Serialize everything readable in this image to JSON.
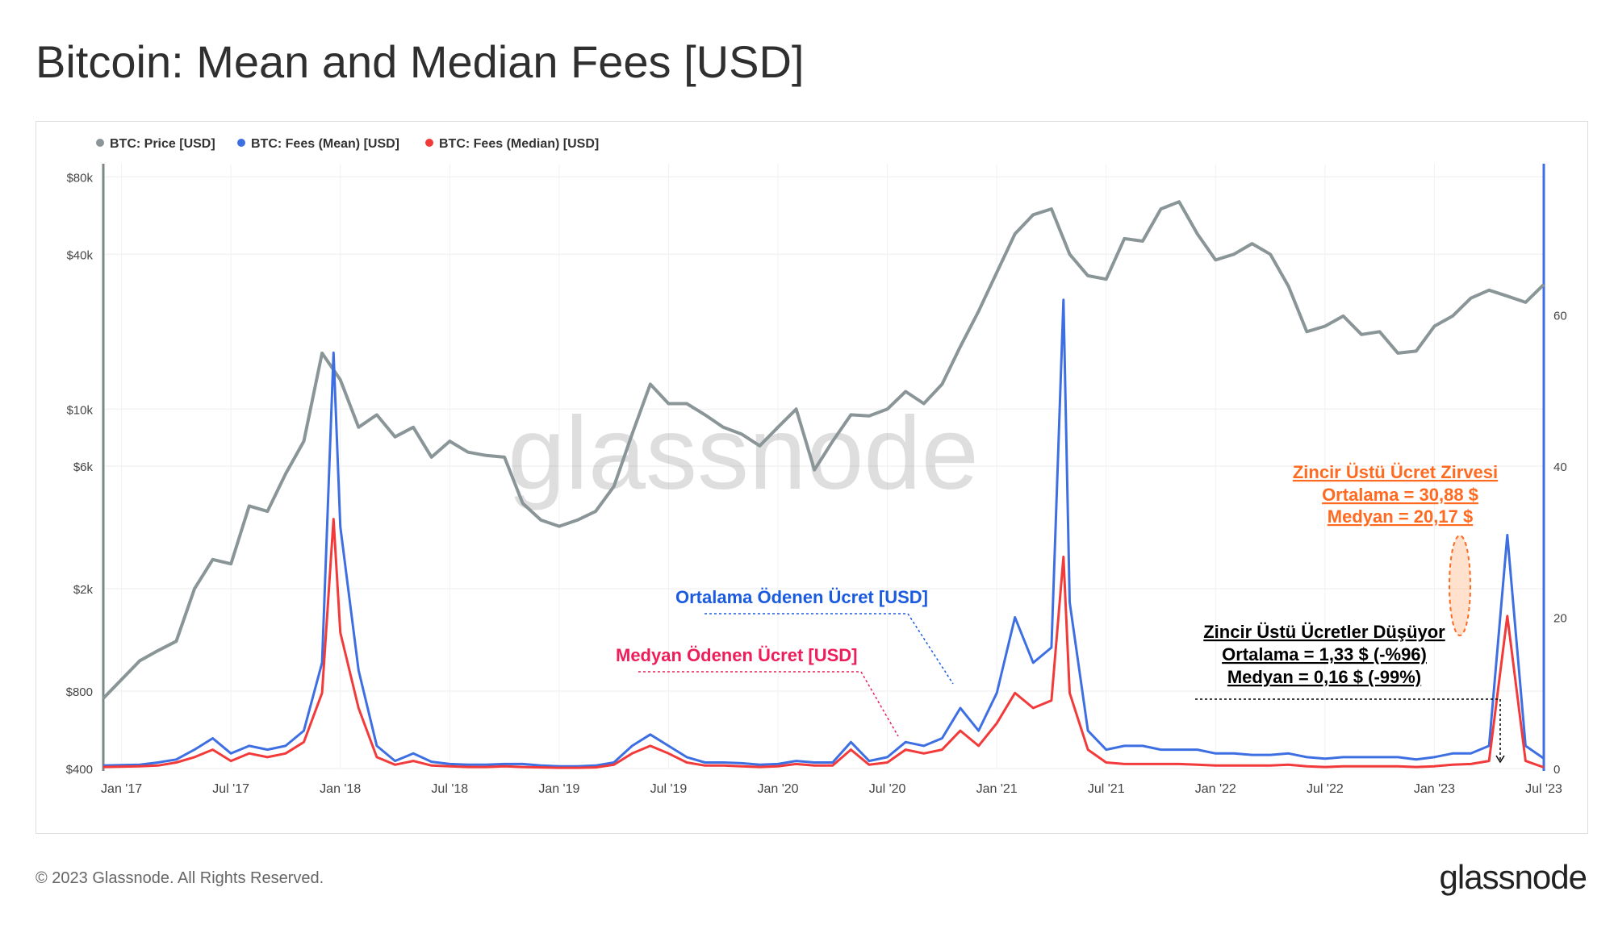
{
  "page": {
    "title": "Bitcoin: Mean and Median Fees [USD]",
    "copyright": "© 2023 Glassnode. All Rights Reserved.",
    "brand": "glassnode",
    "watermark": "glassnode"
  },
  "colors": {
    "price": "#8a9597",
    "mean": "#3d6fe3",
    "median": "#f23a3a",
    "blueText": "#1a5be0",
    "pinkText": "#ee1e5a",
    "orangeText": "#ff6a21"
  },
  "chart_data": {
    "type": "line",
    "x_range": [
      "2016-12",
      "2023-07"
    ],
    "x_ticks": [
      "Jan '17",
      "Jul '17",
      "Jan '18",
      "Jul '18",
      "Jan '19",
      "Jul '19",
      "Jan '20",
      "Jul '20",
      "Jan '21",
      "Jul '21",
      "Jan '22",
      "Jul '22",
      "Jan '23",
      "Jul '23"
    ],
    "y_left": {
      "scale": "log",
      "range": [
        400,
        90000
      ],
      "ticks": [
        "$400",
        "$800",
        "$2k",
        "$6k",
        "$10k",
        "$40k",
        "$80k"
      ],
      "tick_values": [
        400,
        800,
        2000,
        6000,
        10000,
        40000,
        80000
      ]
    },
    "y_right": {
      "scale": "linear",
      "range": [
        0,
        80
      ],
      "ticks": [
        "0",
        "20",
        "40",
        "60"
      ],
      "tick_values": [
        0,
        20,
        40,
        60
      ]
    },
    "legend": {
      "placement": "top-left"
    },
    "series": [
      {
        "name": "BTC: Price [USD]",
        "axis": "left",
        "color": "#8a9597",
        "points": [
          [
            "2016-12",
            750
          ],
          [
            "2017-02",
            1050
          ],
          [
            "2017-03",
            1150
          ],
          [
            "2017-04",
            1250
          ],
          [
            "2017-05",
            2000
          ],
          [
            "2017-06",
            2600
          ],
          [
            "2017-07",
            2500
          ],
          [
            "2017-08",
            4200
          ],
          [
            "2017-09",
            4000
          ],
          [
            "2017-10",
            5600
          ],
          [
            "2017-11",
            7500
          ],
          [
            "2017-12",
            16500
          ],
          [
            "2018-01",
            13000
          ],
          [
            "2018-02",
            8500
          ],
          [
            "2018-03",
            9500
          ],
          [
            "2018-04",
            7800
          ],
          [
            "2018-05",
            8500
          ],
          [
            "2018-06",
            6500
          ],
          [
            "2018-07",
            7500
          ],
          [
            "2018-08",
            6800
          ],
          [
            "2018-09",
            6600
          ],
          [
            "2018-10",
            6500
          ],
          [
            "2018-11",
            4300
          ],
          [
            "2018-12",
            3700
          ],
          [
            "2019-01",
            3500
          ],
          [
            "2019-02",
            3700
          ],
          [
            "2019-03",
            4000
          ],
          [
            "2019-04",
            5000
          ],
          [
            "2019-05",
            8000
          ],
          [
            "2019-06",
            12500
          ],
          [
            "2019-07",
            10500
          ],
          [
            "2019-08",
            10500
          ],
          [
            "2019-09",
            9500
          ],
          [
            "2019-10",
            8500
          ],
          [
            "2019-11",
            8000
          ],
          [
            "2019-12",
            7200
          ],
          [
            "2020-01",
            8500
          ],
          [
            "2020-02",
            10000
          ],
          [
            "2020-03",
            5800
          ],
          [
            "2020-04",
            7500
          ],
          [
            "2020-05",
            9500
          ],
          [
            "2020-06",
            9400
          ],
          [
            "2020-07",
            10000
          ],
          [
            "2020-08",
            11700
          ],
          [
            "2020-09",
            10500
          ],
          [
            "2020-10",
            12500
          ],
          [
            "2020-11",
            17500
          ],
          [
            "2020-12",
            24000
          ],
          [
            "2021-01",
            34000
          ],
          [
            "2021-02",
            48000
          ],
          [
            "2021-03",
            57000
          ],
          [
            "2021-04",
            60000
          ],
          [
            "2021-05",
            40000
          ],
          [
            "2021-06",
            33000
          ],
          [
            "2021-07",
            32000
          ],
          [
            "2021-08",
            46000
          ],
          [
            "2021-09",
            45000
          ],
          [
            "2021-10",
            60000
          ],
          [
            "2021-11",
            64000
          ],
          [
            "2021-12",
            48000
          ],
          [
            "2022-01",
            38000
          ],
          [
            "2022-02",
            40000
          ],
          [
            "2022-03",
            44000
          ],
          [
            "2022-04",
            40000
          ],
          [
            "2022-05",
            30000
          ],
          [
            "2022-06",
            20000
          ],
          [
            "2022-07",
            21000
          ],
          [
            "2022-08",
            23000
          ],
          [
            "2022-09",
            19500
          ],
          [
            "2022-10",
            20000
          ],
          [
            "2022-11",
            16500
          ],
          [
            "2022-12",
            16800
          ],
          [
            "2023-01",
            21000
          ],
          [
            "2023-02",
            23000
          ],
          [
            "2023-03",
            27000
          ],
          [
            "2023-04",
            29000
          ],
          [
            "2023-05",
            27500
          ],
          [
            "2023-06",
            26000
          ],
          [
            "2023-07",
            30500
          ]
        ]
      },
      {
        "name": "BTC: Fees (Mean) [USD]",
        "axis": "right",
        "color": "#3d6fe3",
        "points": [
          [
            "2016-12",
            0.4
          ],
          [
            "2017-02",
            0.5
          ],
          [
            "2017-03",
            0.8
          ],
          [
            "2017-04",
            1.2
          ],
          [
            "2017-05",
            2.5
          ],
          [
            "2017-06",
            4.0
          ],
          [
            "2017-07",
            2.0
          ],
          [
            "2017-08",
            3.0
          ],
          [
            "2017-09",
            2.5
          ],
          [
            "2017-10",
            3.0
          ],
          [
            "2017-11",
            5.0
          ],
          [
            "2017-12",
            14.0
          ],
          [
            "2017-12-20",
            55.0
          ],
          [
            "2018-01",
            32.0
          ],
          [
            "2018-02",
            13.0
          ],
          [
            "2018-03",
            3.0
          ],
          [
            "2018-04",
            1.0
          ],
          [
            "2018-05",
            2.0
          ],
          [
            "2018-06",
            0.9
          ],
          [
            "2018-07",
            0.6
          ],
          [
            "2018-08",
            0.5
          ],
          [
            "2018-09",
            0.5
          ],
          [
            "2018-10",
            0.6
          ],
          [
            "2018-11",
            0.6
          ],
          [
            "2018-12",
            0.4
          ],
          [
            "2019-01",
            0.3
          ],
          [
            "2019-02",
            0.3
          ],
          [
            "2019-03",
            0.4
          ],
          [
            "2019-04",
            0.8
          ],
          [
            "2019-05",
            3.0
          ],
          [
            "2019-06",
            4.5
          ],
          [
            "2019-07",
            3.0
          ],
          [
            "2019-08",
            1.5
          ],
          [
            "2019-09",
            0.8
          ],
          [
            "2019-10",
            0.8
          ],
          [
            "2019-11",
            0.7
          ],
          [
            "2019-12",
            0.5
          ],
          [
            "2020-01",
            0.6
          ],
          [
            "2020-02",
            1.0
          ],
          [
            "2020-03",
            0.8
          ],
          [
            "2020-04",
            0.8
          ],
          [
            "2020-05",
            3.5
          ],
          [
            "2020-06",
            1.0
          ],
          [
            "2020-07",
            1.5
          ],
          [
            "2020-08",
            3.5
          ],
          [
            "2020-09",
            3.0
          ],
          [
            "2020-10",
            4.0
          ],
          [
            "2020-11",
            8.0
          ],
          [
            "2020-12",
            5.0
          ],
          [
            "2021-01",
            10.0
          ],
          [
            "2021-02",
            20.0
          ],
          [
            "2021-03",
            14.0
          ],
          [
            "2021-04",
            16.0
          ],
          [
            "2021-04-21",
            62.0
          ],
          [
            "2021-05",
            22.0
          ],
          [
            "2021-06",
            5.0
          ],
          [
            "2021-07",
            2.5
          ],
          [
            "2021-08",
            3.0
          ],
          [
            "2021-09",
            3.0
          ],
          [
            "2021-10",
            2.5
          ],
          [
            "2021-11",
            2.5
          ],
          [
            "2021-12",
            2.5
          ],
          [
            "2022-01",
            2.0
          ],
          [
            "2022-02",
            2.0
          ],
          [
            "2022-03",
            1.8
          ],
          [
            "2022-04",
            1.8
          ],
          [
            "2022-05",
            2.0
          ],
          [
            "2022-06",
            1.5
          ],
          [
            "2022-07",
            1.3
          ],
          [
            "2022-08",
            1.5
          ],
          [
            "2022-09",
            1.5
          ],
          [
            "2022-10",
            1.5
          ],
          [
            "2022-11",
            1.5
          ],
          [
            "2022-12",
            1.2
          ],
          [
            "2023-01",
            1.5
          ],
          [
            "2023-02",
            2.0
          ],
          [
            "2023-03",
            2.0
          ],
          [
            "2023-04",
            3.0
          ],
          [
            "2023-05",
            30.88
          ],
          [
            "2023-06",
            3.0
          ],
          [
            "2023-07",
            1.33
          ]
        ]
      },
      {
        "name": "BTC: Fees (Median) [USD]",
        "axis": "right",
        "color": "#f23a3a",
        "points": [
          [
            "2016-12",
            0.2
          ],
          [
            "2017-02",
            0.3
          ],
          [
            "2017-03",
            0.4
          ],
          [
            "2017-04",
            0.8
          ],
          [
            "2017-05",
            1.5
          ],
          [
            "2017-06",
            2.5
          ],
          [
            "2017-07",
            1.0
          ],
          [
            "2017-08",
            2.0
          ],
          [
            "2017-09",
            1.5
          ],
          [
            "2017-10",
            2.0
          ],
          [
            "2017-11",
            3.5
          ],
          [
            "2017-12",
            10.0
          ],
          [
            "2017-12-20",
            33.0
          ],
          [
            "2018-01",
            18.0
          ],
          [
            "2018-02",
            8.0
          ],
          [
            "2018-03",
            1.5
          ],
          [
            "2018-04",
            0.5
          ],
          [
            "2018-05",
            1.0
          ],
          [
            "2018-06",
            0.4
          ],
          [
            "2018-07",
            0.3
          ],
          [
            "2018-08",
            0.2
          ],
          [
            "2018-09",
            0.2
          ],
          [
            "2018-10",
            0.3
          ],
          [
            "2018-11",
            0.2
          ],
          [
            "2018-12",
            0.15
          ],
          [
            "2019-01",
            0.1
          ],
          [
            "2019-02",
            0.1
          ],
          [
            "2019-03",
            0.15
          ],
          [
            "2019-04",
            0.5
          ],
          [
            "2019-05",
            2.0
          ],
          [
            "2019-06",
            3.0
          ],
          [
            "2019-07",
            2.0
          ],
          [
            "2019-08",
            0.8
          ],
          [
            "2019-09",
            0.4
          ],
          [
            "2019-10",
            0.4
          ],
          [
            "2019-11",
            0.3
          ],
          [
            "2019-12",
            0.2
          ],
          [
            "2020-01",
            0.3
          ],
          [
            "2020-02",
            0.6
          ],
          [
            "2020-03",
            0.4
          ],
          [
            "2020-04",
            0.4
          ],
          [
            "2020-05",
            2.5
          ],
          [
            "2020-06",
            0.5
          ],
          [
            "2020-07",
            0.8
          ],
          [
            "2020-08",
            2.5
          ],
          [
            "2020-09",
            2.0
          ],
          [
            "2020-10",
            2.5
          ],
          [
            "2020-11",
            5.0
          ],
          [
            "2020-12",
            3.0
          ],
          [
            "2021-01",
            6.0
          ],
          [
            "2021-02",
            10.0
          ],
          [
            "2021-03",
            8.0
          ],
          [
            "2021-04",
            9.0
          ],
          [
            "2021-04-21",
            28.0
          ],
          [
            "2021-05",
            10.0
          ],
          [
            "2021-06",
            2.5
          ],
          [
            "2021-07",
            0.8
          ],
          [
            "2021-08",
            0.6
          ],
          [
            "2021-09",
            0.6
          ],
          [
            "2021-10",
            0.6
          ],
          [
            "2021-11",
            0.6
          ],
          [
            "2021-12",
            0.5
          ],
          [
            "2022-01",
            0.4
          ],
          [
            "2022-02",
            0.4
          ],
          [
            "2022-03",
            0.4
          ],
          [
            "2022-04",
            0.4
          ],
          [
            "2022-05",
            0.5
          ],
          [
            "2022-06",
            0.3
          ],
          [
            "2022-07",
            0.2
          ],
          [
            "2022-08",
            0.3
          ],
          [
            "2022-09",
            0.3
          ],
          [
            "2022-10",
            0.3
          ],
          [
            "2022-11",
            0.3
          ],
          [
            "2022-12",
            0.2
          ],
          [
            "2023-01",
            0.3
          ],
          [
            "2023-02",
            0.5
          ],
          [
            "2023-03",
            0.6
          ],
          [
            "2023-04",
            1.0
          ],
          [
            "2023-05",
            20.17
          ],
          [
            "2023-06",
            1.0
          ],
          [
            "2023-07",
            0.16
          ]
        ]
      }
    ],
    "annotations": {
      "mean_label": "Ortalama Ödenen Ücret [USD]",
      "median_label": "Medyan Ödenen Ücret [USD]",
      "peak": [
        "Zincir Üstü Ücret Zirvesi",
        "Ortalama = 30,88 $",
        "Medyan = 20,17 $"
      ],
      "drop": [
        "Zincir Üstü Ücretler Düşüyor",
        "Ortalama = 1,33 $ (-%96)",
        "Medyan = 0,16 $ (-99%)"
      ]
    }
  }
}
